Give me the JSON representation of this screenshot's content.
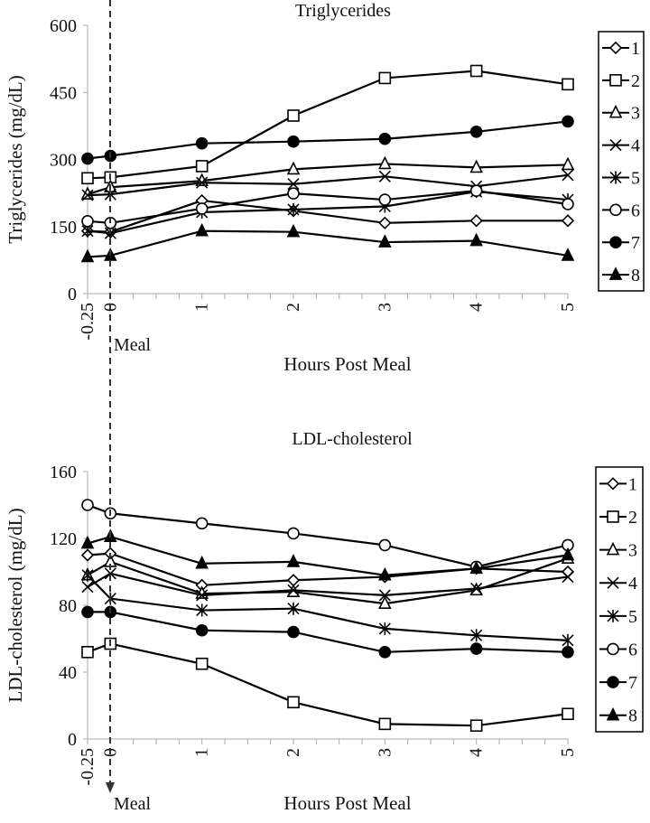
{
  "chart_data": [
    {
      "type": "line",
      "title": "Triglycerides",
      "xlabel": "Hours Post Meal",
      "ylabel": "Triglycerides (mg/dL)",
      "annotation": "Meal",
      "x": [
        -0.25,
        0,
        1,
        2,
        3,
        4,
        5
      ],
      "x_tick_labels": [
        "-0.25",
        "0",
        "1",
        "2",
        "3",
        "4",
        "5"
      ],
      "ylim": [
        0,
        600
      ],
      "y_ticks": [
        0,
        150,
        300,
        450,
        600
      ],
      "grid": false,
      "legend_position": "right",
      "series": [
        {
          "name": "1",
          "marker": "diamond-open",
          "values": [
            140,
            138,
            208,
            185,
            158,
            163,
            163
          ]
        },
        {
          "name": "2",
          "marker": "square-open",
          "values": [
            258,
            260,
            285,
            398,
            482,
            498,
            468
          ]
        },
        {
          "name": "3",
          "marker": "triangle-open",
          "values": [
            222,
            238,
            252,
            278,
            290,
            282,
            288
          ]
        },
        {
          "name": "4",
          "marker": "x",
          "values": [
            220,
            222,
            248,
            245,
            262,
            240,
            265
          ]
        },
        {
          "name": "5",
          "marker": "asterisk",
          "values": [
            140,
            135,
            182,
            188,
            195,
            228,
            210
          ]
        },
        {
          "name": "6",
          "marker": "circle-open",
          "values": [
            162,
            158,
            190,
            224,
            210,
            230,
            200
          ]
        },
        {
          "name": "7",
          "marker": "circle-filled",
          "values": [
            302,
            308,
            336,
            340,
            346,
            362,
            385
          ]
        },
        {
          "name": "8",
          "marker": "triangle-filled",
          "values": [
            82,
            85,
            140,
            138,
            115,
            118,
            85
          ]
        }
      ]
    },
    {
      "type": "line",
      "title": "LDL-cholesterol",
      "xlabel": "Hours Post Meal",
      "ylabel": "LDL-cholesterol  (mg/dL)",
      "annotation": "Meal",
      "x": [
        -0.25,
        0,
        1,
        2,
        3,
        4,
        5
      ],
      "x_tick_labels": [
        "-0.25",
        "0",
        "1",
        "2",
        "3",
        "4",
        "5"
      ],
      "ylim": [
        0,
        160
      ],
      "y_ticks": [
        0,
        40,
        80,
        120,
        160
      ],
      "grid": false,
      "legend_position": "right",
      "series": [
        {
          "name": "1",
          "marker": "diamond-open",
          "values": [
            110,
            111,
            92,
            95,
            97,
            102,
            100
          ]
        },
        {
          "name": "2",
          "marker": "square-open",
          "values": [
            52,
            57,
            45,
            22,
            9,
            8,
            15
          ]
        },
        {
          "name": "3",
          "marker": "triangle-open",
          "values": [
            98,
            106,
            87,
            88,
            81,
            89,
            108
          ]
        },
        {
          "name": "4",
          "marker": "x",
          "values": [
            91,
            99,
            86,
            89,
            86,
            90,
            97
          ]
        },
        {
          "name": "5",
          "marker": "asterisk",
          "values": [
            98,
            84,
            77,
            78,
            66,
            62,
            59
          ]
        },
        {
          "name": "6",
          "marker": "circle-open",
          "values": [
            140,
            135,
            129,
            123,
            116,
            103,
            116
          ]
        },
        {
          "name": "7",
          "marker": "circle-filled",
          "values": [
            76,
            76,
            65,
            64,
            52,
            54,
            52
          ]
        },
        {
          "name": "8",
          "marker": "triangle-filled",
          "values": [
            117,
            121,
            105,
            106,
            98,
            102,
            110
          ]
        }
      ]
    }
  ]
}
